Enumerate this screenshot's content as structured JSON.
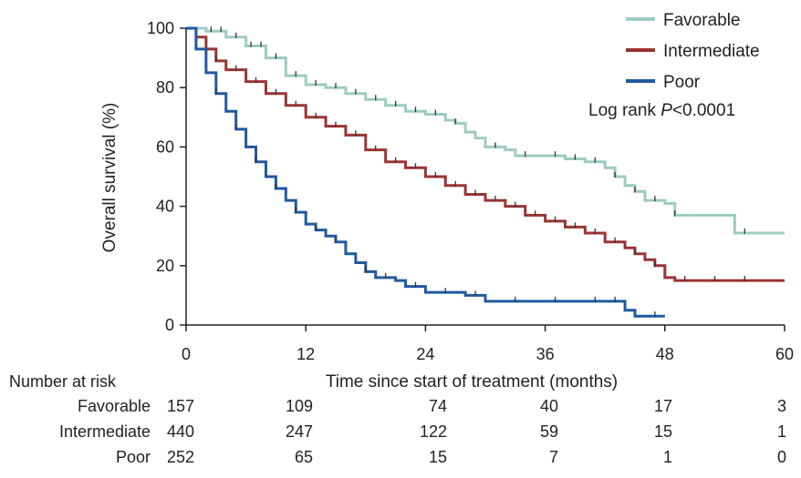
{
  "chart_data": {
    "type": "line",
    "subtype": "kaplan-meier",
    "xlabel": "Time since start of treatment (months)",
    "ylabel": "Overall survival (%)",
    "xlim": [
      0,
      60
    ],
    "ylim": [
      0,
      100
    ],
    "xticks": [
      0,
      12,
      24,
      36,
      48,
      60
    ],
    "yticks": [
      0,
      20,
      40,
      60,
      80,
      100
    ],
    "grid": false,
    "legend_position": "top-right",
    "annotation": {
      "prefix": "Log rank ",
      "italic": "P",
      "suffix": "<0.0001"
    },
    "series": [
      {
        "name": "Favorable",
        "color": "#9ccbc2",
        "points": [
          [
            0,
            100
          ],
          [
            2,
            99
          ],
          [
            4,
            97
          ],
          [
            6,
            94
          ],
          [
            8,
            90
          ],
          [
            10,
            84
          ],
          [
            12,
            81
          ],
          [
            14,
            80
          ],
          [
            16,
            78
          ],
          [
            18,
            76
          ],
          [
            20,
            74
          ],
          [
            22,
            72
          ],
          [
            24,
            71
          ],
          [
            26,
            69
          ],
          [
            27,
            68
          ],
          [
            28,
            65
          ],
          [
            29,
            63
          ],
          [
            30,
            60
          ],
          [
            32,
            59
          ],
          [
            33,
            57
          ],
          [
            36,
            57
          ],
          [
            38,
            56
          ],
          [
            40,
            55
          ],
          [
            42,
            53
          ],
          [
            43,
            50
          ],
          [
            44,
            47
          ],
          [
            45,
            45
          ],
          [
            46,
            42
          ],
          [
            48,
            41
          ],
          [
            49,
            37
          ],
          [
            52,
            37
          ],
          [
            55,
            34
          ],
          [
            55,
            31
          ],
          [
            60,
            31
          ]
        ],
        "censor_times": [
          2.5,
          3.5,
          5,
          6.5,
          7.5,
          9,
          11,
          13,
          15,
          17,
          19,
          21,
          23,
          25,
          27,
          31,
          34,
          37,
          39,
          41,
          43,
          45,
          47,
          49,
          56
        ]
      },
      {
        "name": "Intermediate",
        "color": "#9b3434",
        "points": [
          [
            0,
            100
          ],
          [
            1,
            97
          ],
          [
            2,
            93
          ],
          [
            3,
            89
          ],
          [
            4,
            86
          ],
          [
            6,
            82
          ],
          [
            8,
            78
          ],
          [
            10,
            74
          ],
          [
            12,
            70
          ],
          [
            14,
            67
          ],
          [
            16,
            64
          ],
          [
            18,
            59
          ],
          [
            20,
            55
          ],
          [
            22,
            53
          ],
          [
            24,
            50
          ],
          [
            26,
            47
          ],
          [
            28,
            44
          ],
          [
            30,
            42
          ],
          [
            32,
            40
          ],
          [
            34,
            37
          ],
          [
            36,
            35
          ],
          [
            38,
            33
          ],
          [
            40,
            31
          ],
          [
            42,
            28
          ],
          [
            44,
            26
          ],
          [
            45,
            24
          ],
          [
            46,
            22
          ],
          [
            47,
            20
          ],
          [
            48,
            16
          ],
          [
            49,
            15
          ],
          [
            60,
            15
          ]
        ],
        "censor_times": [
          3,
          5,
          7,
          9,
          11,
          13,
          15,
          17,
          19,
          21,
          23,
          25,
          27,
          29,
          31,
          33,
          35,
          37,
          39,
          41,
          43,
          45,
          47,
          50,
          53,
          56
        ]
      },
      {
        "name": "Poor",
        "color": "#1f5aa0",
        "points": [
          [
            0,
            100
          ],
          [
            1,
            93
          ],
          [
            2,
            85
          ],
          [
            3,
            78
          ],
          [
            4,
            72
          ],
          [
            5,
            66
          ],
          [
            6,
            60
          ],
          [
            7,
            55
          ],
          [
            8,
            50
          ],
          [
            9,
            46
          ],
          [
            10,
            42
          ],
          [
            11,
            38
          ],
          [
            12,
            34
          ],
          [
            13,
            32
          ],
          [
            14,
            30
          ],
          [
            15,
            28
          ],
          [
            16,
            24
          ],
          [
            17,
            21
          ],
          [
            18,
            18
          ],
          [
            19,
            16
          ],
          [
            20,
            16
          ],
          [
            21,
            15
          ],
          [
            22,
            13
          ],
          [
            24,
            11
          ],
          [
            26,
            11
          ],
          [
            28,
            10
          ],
          [
            30,
            8
          ],
          [
            32,
            8
          ],
          [
            44,
            8
          ],
          [
            44,
            5
          ],
          [
            45,
            5
          ],
          [
            45,
            3
          ],
          [
            48,
            3
          ]
        ],
        "censor_times": [
          3,
          5,
          7,
          9,
          11,
          13,
          15,
          18,
          20,
          23,
          26,
          29,
          33,
          37,
          41,
          43,
          47
        ]
      }
    ],
    "risk_table": {
      "title": "Number at risk",
      "times": [
        0,
        12,
        24,
        36,
        48,
        60
      ],
      "rows": [
        {
          "label": "Favorable",
          "values": [
            "157",
            "109",
            "74",
            "40",
            "17",
            "3"
          ]
        },
        {
          "label": "Intermediate",
          "values": [
            "440",
            "247",
            "122",
            "59",
            "15",
            "1"
          ]
        },
        {
          "label": "Poor",
          "values": [
            "252",
            "65",
            "15",
            "7",
            "1",
            "0"
          ]
        }
      ]
    }
  }
}
